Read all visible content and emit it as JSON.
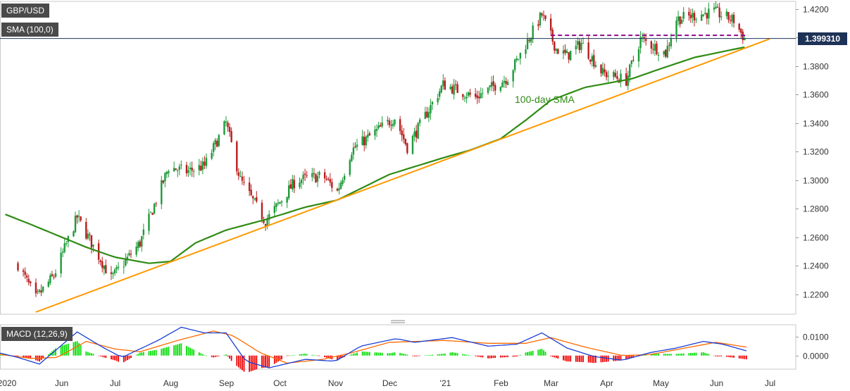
{
  "symbol_label": "GBP/USD",
  "sma_label": "SMA (100,0)",
  "macd_label": "MACD (12,26,9)",
  "current_price_label": "1.399310",
  "annotation_sma": "100-day SMA",
  "colors": {
    "candle_up": "#1e9a3a",
    "candle_down": "#b81d1d",
    "sma_line": "#2e8b12",
    "trendline": "#ff9900",
    "resistance": "#8b0a8b",
    "macd_line": "#1a3fd6",
    "signal_line": "#ff6a00",
    "hist_pos": "#00dd00",
    "hist_neg": "#ee0000",
    "price_marker": "#1e3257"
  },
  "chart_data": [
    {
      "type": "candlestick",
      "title": "GBP/USD",
      "x_tick_labels": [
        "2020",
        "Jun",
        "Jul",
        "Aug",
        "Sep",
        "Oct",
        "Nov",
        "Dec",
        "'21",
        "Feb",
        "Mar",
        "Apr",
        "May",
        "Jun",
        "Jul"
      ],
      "y_tick_labels": [
        "1.4200",
        "1.4000",
        "1.3800",
        "1.3600",
        "1.3400",
        "1.3200",
        "1.3000",
        "1.2800",
        "1.2600",
        "1.2400",
        "1.2200"
      ],
      "ylim": [
        1.206,
        1.4253
      ],
      "grid": true,
      "last_price": 1.39931,
      "close_anchors": [
        {
          "date": "2020-05-08",
          "close": 1.241
        },
        {
          "date": "2020-05-18",
          "close": 1.217
        },
        {
          "date": "2020-05-28",
          "close": 1.233
        },
        {
          "date": "2020-06-10",
          "close": 1.274
        },
        {
          "date": "2020-06-29",
          "close": 1.231
        },
        {
          "date": "2020-07-15",
          "close": 1.256
        },
        {
          "date": "2020-07-31",
          "close": 1.309
        },
        {
          "date": "2020-08-10",
          "close": 1.306
        },
        {
          "date": "2020-08-20",
          "close": 1.31
        },
        {
          "date": "2020-09-01",
          "close": 1.34
        },
        {
          "date": "2020-09-09",
          "close": 1.3
        },
        {
          "date": "2020-09-23",
          "close": 1.271
        },
        {
          "date": "2020-10-10",
          "close": 1.3
        },
        {
          "date": "2020-10-25",
          "close": 1.303
        },
        {
          "date": "2020-11-02",
          "close": 1.292
        },
        {
          "date": "2020-11-10",
          "close": 1.321
        },
        {
          "date": "2020-12-04",
          "close": 1.344
        },
        {
          "date": "2020-12-11",
          "close": 1.323
        },
        {
          "date": "2020-12-31",
          "close": 1.367
        },
        {
          "date": "2021-01-18",
          "close": 1.358
        },
        {
          "date": "2021-02-05",
          "close": 1.372
        },
        {
          "date": "2021-02-24",
          "close": 1.416
        },
        {
          "date": "2021-03-04",
          "close": 1.392
        },
        {
          "date": "2021-03-10",
          "close": 1.387
        },
        {
          "date": "2021-03-18",
          "close": 1.396
        },
        {
          "date": "2021-03-30",
          "close": 1.375
        },
        {
          "date": "2021-04-12",
          "close": 1.37
        },
        {
          "date": "2021-04-20",
          "close": 1.399
        },
        {
          "date": "2021-05-04",
          "close": 1.389
        },
        {
          "date": "2021-05-10",
          "close": 1.413
        },
        {
          "date": "2021-05-31",
          "close": 1.418
        },
        {
          "date": "2021-06-11",
          "close": 1.412
        },
        {
          "date": "2021-06-17",
          "close": 1.399
        }
      ],
      "sma_100": [
        {
          "date": "2020-05-01",
          "value": 1.276
        },
        {
          "date": "2020-05-15",
          "value": 1.269
        },
        {
          "date": "2020-06-15",
          "value": 1.253
        },
        {
          "date": "2020-07-01",
          "value": 1.246
        },
        {
          "date": "2020-07-20",
          "value": 1.2417
        },
        {
          "date": "2020-08-01",
          "value": 1.243
        },
        {
          "date": "2020-08-15",
          "value": 1.256
        },
        {
          "date": "2020-09-01",
          "value": 1.265
        },
        {
          "date": "2020-09-22",
          "value": 1.272
        },
        {
          "date": "2020-10-15",
          "value": 1.281
        },
        {
          "date": "2020-11-02",
          "value": 1.286
        },
        {
          "date": "2020-12-01",
          "value": 1.304
        },
        {
          "date": "2021-01-01",
          "value": 1.316
        },
        {
          "date": "2021-01-15",
          "value": 1.321
        },
        {
          "date": "2021-02-01",
          "value": 1.329
        },
        {
          "date": "2021-02-15",
          "value": 1.342
        },
        {
          "date": "2021-03-01",
          "value": 1.356
        },
        {
          "date": "2021-03-20",
          "value": 1.365
        },
        {
          "date": "2021-04-15",
          "value": 1.371
        },
        {
          "date": "2021-05-01",
          "value": 1.378
        },
        {
          "date": "2021-05-20",
          "value": 1.386
        },
        {
          "date": "2021-06-18",
          "value": 1.3935
        }
      ],
      "trendline": [
        {
          "date": "2020-05-18",
          "value": 1.2075
        },
        {
          "date": "2021-07-01",
          "value": 1.399
        }
      ],
      "resistance": {
        "from": "2021-03-01",
        "to": "2021-06-19",
        "value": 1.4015
      }
    },
    {
      "type": "macd",
      "title": "MACD (12,26,9)",
      "y_tick_labels": [
        "0.0100",
        "0.0000"
      ],
      "ylim": [
        -0.0072,
        0.0163
      ],
      "macd_line": [
        {
          "date": "2020-04-25",
          "value": 0.002
        },
        {
          "date": "2020-05-08",
          "value": -0.001
        },
        {
          "date": "2020-05-20",
          "value": -0.0045
        },
        {
          "date": "2020-06-10",
          "value": 0.0125
        },
        {
          "date": "2020-06-25",
          "value": 0.004
        },
        {
          "date": "2020-07-05",
          "value": -0.001
        },
        {
          "date": "2020-07-25",
          "value": 0.008
        },
        {
          "date": "2020-08-07",
          "value": 0.015
        },
        {
          "date": "2020-08-20",
          "value": 0.012
        },
        {
          "date": "2020-09-01",
          "value": 0.012
        },
        {
          "date": "2020-09-12",
          "value": -0.003
        },
        {
          "date": "2020-09-25",
          "value": -0.0065
        },
        {
          "date": "2020-10-15",
          "value": -0.002
        },
        {
          "date": "2020-11-01",
          "value": -0.003
        },
        {
          "date": "2020-11-15",
          "value": 0.005
        },
        {
          "date": "2020-12-05",
          "value": 0.009
        },
        {
          "date": "2020-12-15",
          "value": 0.007
        },
        {
          "date": "2021-01-05",
          "value": 0.0095
        },
        {
          "date": "2021-01-25",
          "value": 0.005
        },
        {
          "date": "2021-02-10",
          "value": 0.006
        },
        {
          "date": "2021-02-24",
          "value": 0.012
        },
        {
          "date": "2021-03-10",
          "value": 0.004
        },
        {
          "date": "2021-03-25",
          "value": -0.0005
        },
        {
          "date": "2021-04-10",
          "value": -0.0025
        },
        {
          "date": "2021-04-25",
          "value": 0.0015
        },
        {
          "date": "2021-05-10",
          "value": 0.004
        },
        {
          "date": "2021-05-25",
          "value": 0.0075
        },
        {
          "date": "2021-06-05",
          "value": 0.006
        },
        {
          "date": "2021-06-18",
          "value": 0.0025
        }
      ],
      "signal_line": [
        {
          "date": "2020-04-25",
          "value": 0.001
        },
        {
          "date": "2020-05-15",
          "value": -0.0015
        },
        {
          "date": "2020-05-30",
          "value": -0.001
        },
        {
          "date": "2020-06-15",
          "value": 0.0075
        },
        {
          "date": "2020-07-01",
          "value": 0.0035
        },
        {
          "date": "2020-07-15",
          "value": 0.002
        },
        {
          "date": "2020-08-05",
          "value": 0.008
        },
        {
          "date": "2020-08-25",
          "value": 0.013
        },
        {
          "date": "2020-09-05",
          "value": 0.0105
        },
        {
          "date": "2020-09-20",
          "value": 0.0015
        },
        {
          "date": "2020-10-05",
          "value": -0.004
        },
        {
          "date": "2020-10-25",
          "value": -0.002
        },
        {
          "date": "2020-11-10",
          "value": 0.0015
        },
        {
          "date": "2020-12-01",
          "value": 0.007
        },
        {
          "date": "2021-01-01",
          "value": 0.008
        },
        {
          "date": "2021-01-25",
          "value": 0.0065
        },
        {
          "date": "2021-02-15",
          "value": 0.0065
        },
        {
          "date": "2021-03-01",
          "value": 0.0095
        },
        {
          "date": "2021-03-20",
          "value": 0.0045
        },
        {
          "date": "2021-04-10",
          "value": 0.0
        },
        {
          "date": "2021-04-25",
          "value": 0.0005
        },
        {
          "date": "2021-05-15",
          "value": 0.004
        },
        {
          "date": "2021-06-01",
          "value": 0.007
        },
        {
          "date": "2021-06-18",
          "value": 0.0045
        }
      ]
    }
  ]
}
